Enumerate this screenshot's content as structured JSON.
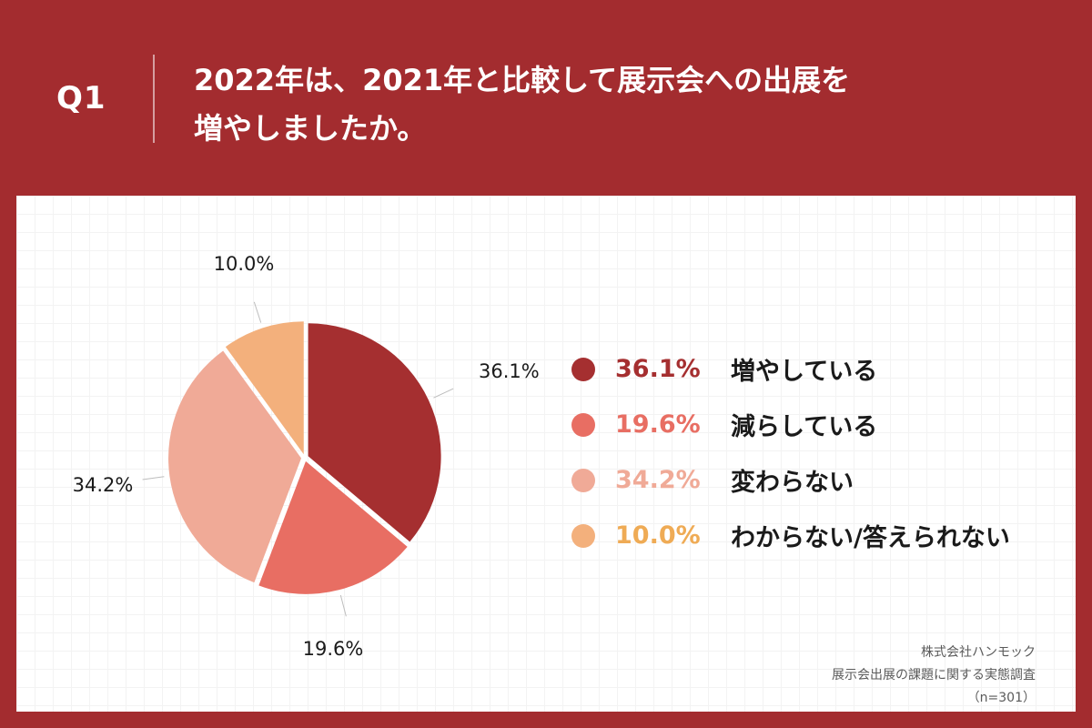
{
  "header": {
    "q_label": "Q1",
    "question_line1": "2022年は、2021年と比較して展示会への出展を",
    "question_line2": "増やしましたか。"
  },
  "colors": {
    "background": "#a32c2f",
    "panel": "#ffffff"
  },
  "chart_data": {
    "type": "pie",
    "title": "",
    "start_angle_deg": 0,
    "direction": "clockwise",
    "slices": [
      {
        "label": "増やしている",
        "value": 36.1,
        "display": "36.1%",
        "color": "#a52f30",
        "pct_color": "#a52f30"
      },
      {
        "label": "減らしている",
        "value": 19.6,
        "display": "19.6%",
        "color": "#e86e63",
        "pct_color": "#e86e63"
      },
      {
        "label": "変わらない",
        "value": 34.2,
        "display": "34.2%",
        "color": "#f0aa97",
        "pct_color": "#f0aa97"
      },
      {
        "label": "わからない/答えられない",
        "value": 10.0,
        "display": "10.0%",
        "color": "#f3b07c",
        "pct_color": "#efab55"
      }
    ],
    "legend_position": "right"
  },
  "source": {
    "company": "株式会社ハンモック",
    "survey": "展示会出展の課題に関する実態調査",
    "sample": "（n=301）"
  }
}
